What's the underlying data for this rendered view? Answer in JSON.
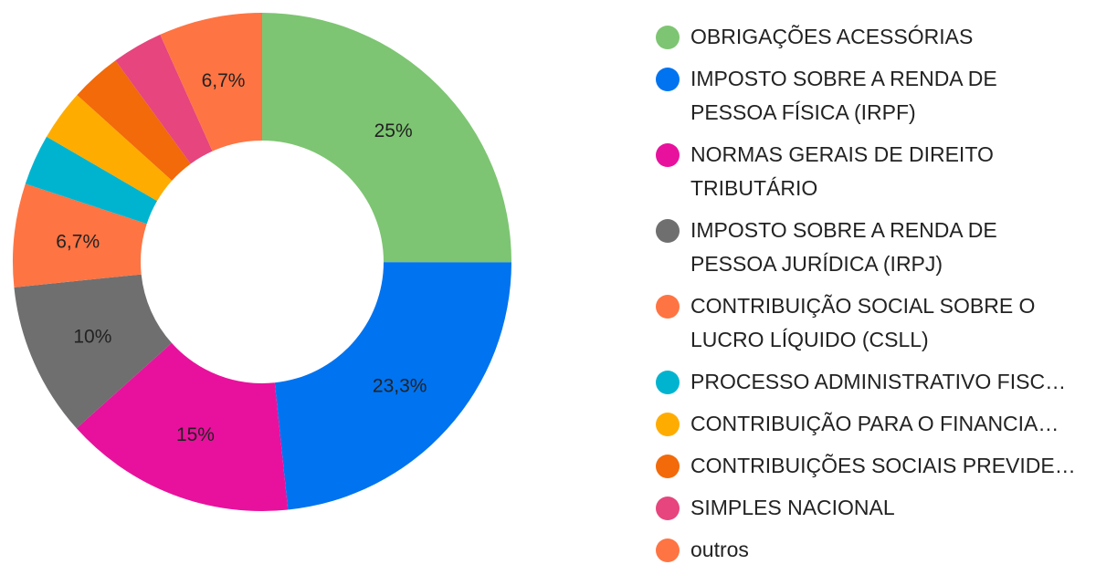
{
  "chart_data": {
    "type": "pie",
    "style": "donut",
    "legend_position": "right",
    "categories": [
      "OBRIGAÇÕES ACESSÓRIAS",
      "IMPOSTO SOBRE A RENDA DE PESSOA FÍSICA (IRPF)",
      "NORMAS GERAIS DE DIREITO TRIBUTÁRIO",
      "IMPOSTO SOBRE A RENDA DE PESSOA JURÍDICA (IRPJ)",
      "CONTRIBUIÇÃO SOCIAL SOBRE O LUCRO LÍQUIDO (CSLL)",
      "PROCESSO ADMINISTRATIVO FISC…",
      "CONTRIBUIÇÃO PARA O FINANCIA…",
      "CONTRIBUIÇÕES SOCIAIS PREVIDE…",
      "SIMPLES NACIONAL",
      "outros"
    ],
    "legend_labels": [
      "OBRIGAÇÕES ACESSÓRIAS",
      "IMPOSTO SOBRE A RENDA DE\nPESSOA FÍSICA (IRPF)",
      "NORMAS GERAIS DE DIREITO\nTRIBUTÁRIO",
      "IMPOSTO SOBRE A RENDA DE\nPESSOA JURÍDICA (IRPJ)",
      "CONTRIBUIÇÃO SOCIAL SOBRE O\nLUCRO LÍQUIDO (CSLL)",
      "PROCESSO ADMINISTRATIVO FISC…",
      "CONTRIBUIÇÃO PARA O FINANCIA…",
      "CONTRIBUIÇÕES SOCIAIS PREVIDE…",
      "SIMPLES NACIONAL",
      "outros"
    ],
    "values": [
      25,
      23.3,
      15,
      10,
      6.7,
      3.3,
      3.3,
      3.3,
      3.3,
      6.7
    ],
    "unit": "%",
    "data_labels": [
      "25%",
      "23,3%",
      "15%",
      "10%",
      "6,7%",
      "",
      "",
      "",
      "",
      "6,7%"
    ],
    "colors": [
      "#7dc572",
      "#0073f0",
      "#e8119d",
      "#6f6f6f",
      "#ff7443",
      "#00b4cf",
      "#ffac00",
      "#f26a0a",
      "#e6457d",
      "#ff7443"
    ]
  }
}
